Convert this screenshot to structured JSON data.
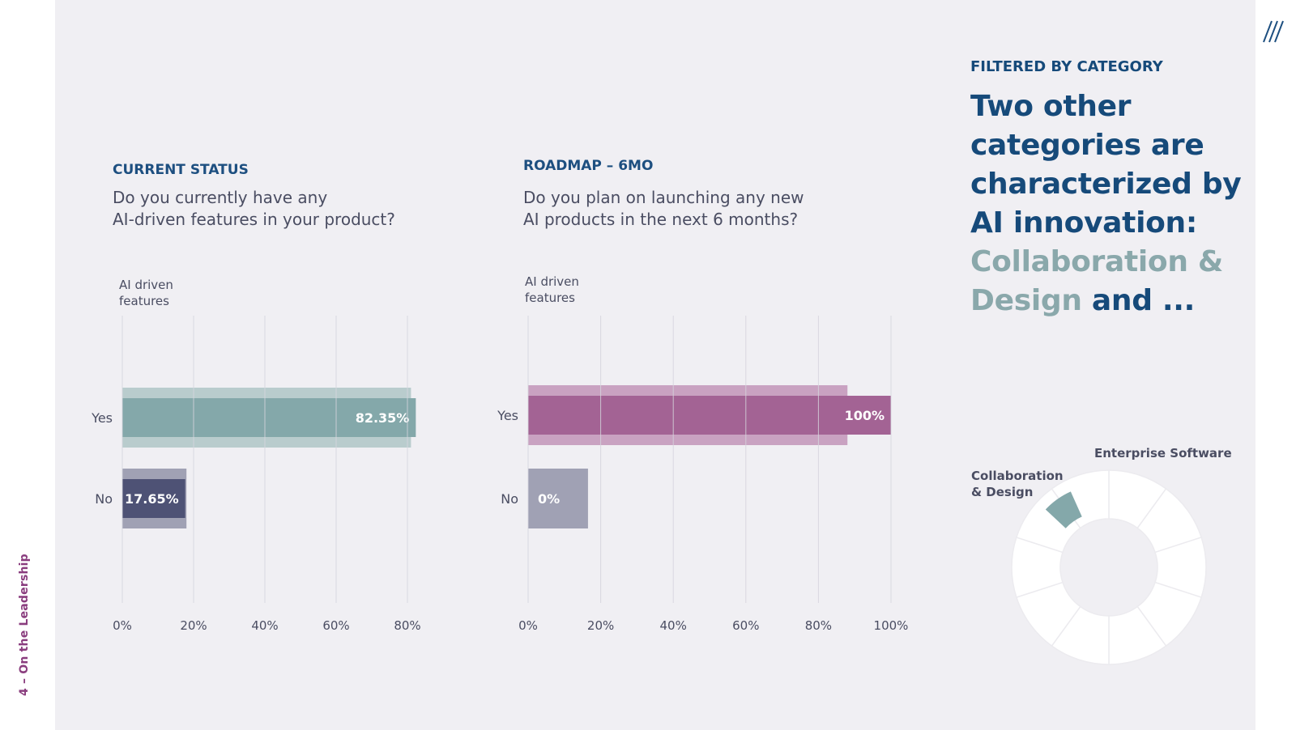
{
  "side_label": "4 – On the Leadership",
  "filter_label": "FILTERED BY CATEGORY",
  "headline": {
    "part1": "Two other categories are characterized by AI innovation: ",
    "accent": "Collaboration & Design",
    "part2": " and ..."
  },
  "colors": {
    "teal": "#84a8aa",
    "teal_light": "#b9cccd",
    "navy": "#4e5275",
    "navy_light": "#a0a1b4",
    "purple": "#a36394",
    "purple_light": "#c9a2c1",
    "title_blue": "#1d4f80"
  },
  "chart_data": [
    {
      "type": "bar",
      "orientation": "horizontal",
      "kicker": "CURRENT STATUS",
      "question_line1": "Do you currently have any",
      "question_line2": "AI-driven features in your product?",
      "axis_title_line1": "AI driven",
      "axis_title_line2": "features",
      "xlim": [
        0,
        80
      ],
      "ticks": [
        "0%",
        "20%",
        "40%",
        "60%",
        "80%"
      ],
      "tick_values": [
        0,
        20,
        40,
        60,
        80
      ],
      "categories": [
        "Yes",
        "No"
      ],
      "values": [
        82.35,
        17.65
      ],
      "comparison_values": [
        81,
        18
      ],
      "labels": [
        "82.35%",
        "17.65%"
      ],
      "grid": true
    },
    {
      "type": "bar",
      "orientation": "horizontal",
      "kicker": "ROADMAP – 6MO",
      "question_line1": "Do you plan on launching any new",
      "question_line2": "AI products in the next 6 months?",
      "axis_title_line1": "AI driven",
      "axis_title_line2": "features",
      "xlim": [
        0,
        100
      ],
      "ticks": [
        "0%",
        "20%",
        "40%",
        "60%",
        "80%",
        "100%"
      ],
      "tick_values": [
        0,
        20,
        40,
        60,
        80,
        100
      ],
      "categories": [
        "Yes",
        "No"
      ],
      "values": [
        100,
        0
      ],
      "comparison_values": [
        88,
        16.5
      ],
      "labels": [
        "100%",
        "0%"
      ],
      "grid": true
    }
  ],
  "donut": {
    "label_enterprise": "Enterprise Software",
    "label_collab_line1": "Collaboration",
    "label_collab_line2": "& Design",
    "segment_count": 10
  }
}
